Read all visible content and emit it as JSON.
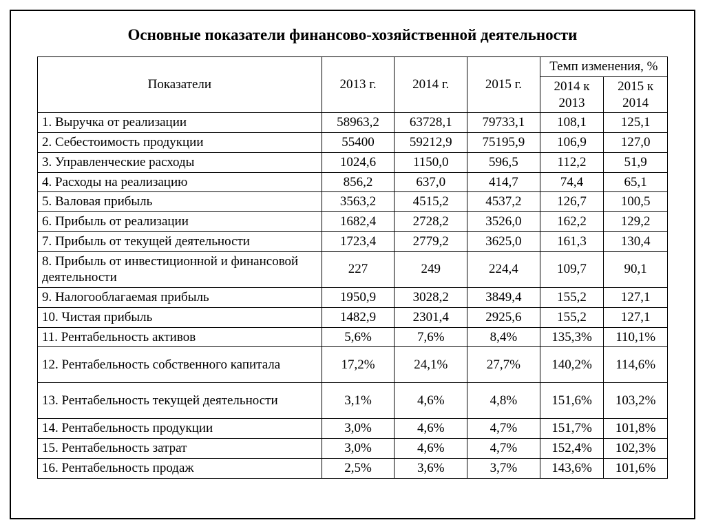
{
  "title": "Основные показатели финансово-хозяйственной деятельности",
  "table": {
    "type": "table",
    "header": {
      "indicators": "Показатели",
      "y2013": "2013 г.",
      "y2014": "2014 г.",
      "y2015": "2015 г.",
      "change_group": "Темп изменения, %",
      "change_14_13": "2014 к 2013",
      "change_15_14": "2015 к 2014"
    },
    "column_widths_pct": [
      41,
      10.5,
      10.5,
      10.5,
      9.2,
      9.2
    ],
    "border_color": "#000000",
    "background_color": "#ffffff",
    "font_family": "Times New Roman",
    "font_size_pt": 14,
    "title_font_size_pt": 17,
    "rows": [
      {
        "label": "1. Выручка от реализации",
        "y2013": "58963,2",
        "y2014": "63728,1",
        "y2015": "79733,1",
        "t1413": "108,1",
        "t1514": "125,1"
      },
      {
        "label": "2. Себестоимость продукции",
        "y2013": "55400",
        "y2014": "59212,9",
        "y2015": "75195,9",
        "t1413": "106,9",
        "t1514": "127,0"
      },
      {
        "label": "3. Управленческие расходы",
        "y2013": "1024,6",
        "y2014": "1150,0",
        "y2015": "596,5",
        "t1413": "112,2",
        "t1514": "51,9"
      },
      {
        "label": "4. Расходы на реализацию",
        "y2013": "856,2",
        "y2014": "637,0",
        "y2015": "414,7",
        "t1413": "74,4",
        "t1514": "65,1"
      },
      {
        "label": "5. Валовая прибыль",
        "y2013": "3563,2",
        "y2014": "4515,2",
        "y2015": "4537,2",
        "t1413": "126,7",
        "t1514": "100,5"
      },
      {
        "label": "6. Прибыль от реализации",
        "y2013": "1682,4",
        "y2014": "2728,2",
        "y2015": "3526,0",
        "t1413": "162,2",
        "t1514": "129,2"
      },
      {
        "label": "7. Прибыль от текущей деятельности",
        "y2013": "1723,4",
        "y2014": "2779,2",
        "y2015": "3625,0",
        "t1413": "161,3",
        "t1514": "130,4"
      },
      {
        "label": "8. Прибыль от инвестиционной и финансовой деятельности",
        "y2013": "227",
        "y2014": "249",
        "y2015": "224,4",
        "t1413": "109,7",
        "t1514": "90,1",
        "tall": true
      },
      {
        "label": "9. Налогооблагаемая прибыль",
        "y2013": "1950,9",
        "y2014": "3028,2",
        "y2015": "3849,4",
        "t1413": "155,2",
        "t1514": "127,1"
      },
      {
        "label": "10. Чистая прибыль",
        "y2013": "1482,9",
        "y2014": "2301,4",
        "y2015": "2925,6",
        "t1413": "155,2",
        "t1514": "127,1"
      },
      {
        "label": "11. Рентабельность активов",
        "y2013": "5,6%",
        "y2014": "7,6%",
        "y2015": "8,4%",
        "t1413": "135,3%",
        "t1514": "110,1%"
      },
      {
        "label": "12. Рентабельность собственного капитала",
        "y2013": "17,2%",
        "y2014": "24,1%",
        "y2015": "27,7%",
        "t1413": "140,2%",
        "t1514": "114,6%",
        "tall": true
      },
      {
        "label": "13. Рентабельность текущей деятельности",
        "y2013": "3,1%",
        "y2014": "4,6%",
        "y2015": "4,8%",
        "t1413": "151,6%",
        "t1514": "103,2%",
        "tall": true
      },
      {
        "label": "14. Рентабельность продукции",
        "y2013": "3,0%",
        "y2014": "4,6%",
        "y2015": "4,7%",
        "t1413": "151,7%",
        "t1514": "101,8%"
      },
      {
        "label": "15. Рентабельность затрат",
        "y2013": "3,0%",
        "y2014": "4,6%",
        "y2015": "4,7%",
        "t1413": "152,4%",
        "t1514": "102,3%"
      },
      {
        "label": "16. Рентабельность продаж",
        "y2013": "2,5%",
        "y2014": "3,6%",
        "y2015": "3,7%",
        "t1413": "143,6%",
        "t1514": "101,6%"
      }
    ]
  }
}
